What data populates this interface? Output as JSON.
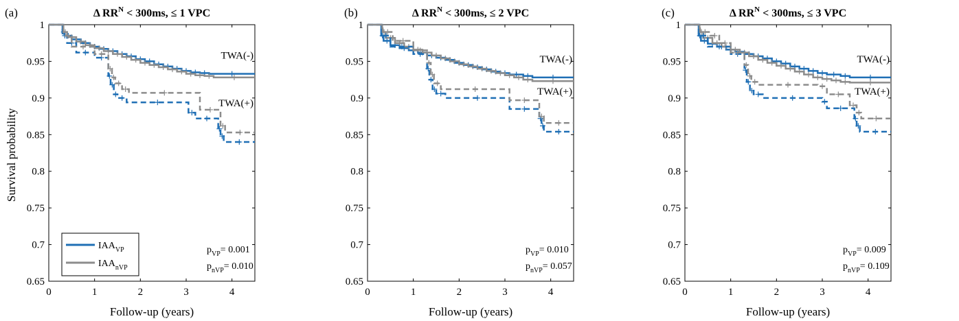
{
  "figure": {
    "ylabel": "Survival probability",
    "xlabel": "Follow-up (years)",
    "y_ticks": [
      "1",
      "0.95",
      "0.9",
      "0.85",
      "0.8",
      "0.75",
      "0.7",
      "0.65"
    ],
    "x_ticks": [
      "0",
      "1",
      "2",
      "3",
      "4"
    ],
    "legend": {
      "items": [
        {
          "base": "IAA",
          "sub": "VP",
          "color": "#1f6fb5"
        },
        {
          "base": "IAA",
          "sub": "nVP",
          "color": "#8c8c8c"
        }
      ]
    }
  },
  "panels": [
    {
      "label": "(a)",
      "title": {
        "pre": "Δ RR",
        "sup": "N",
        "post": " < 300ms, ≤ 1 VPC"
      },
      "twa_neg_label": "TWA(-)",
      "twa_pos_label": "TWA(+)",
      "pvals": [
        {
          "p": "p",
          "sub": "VP",
          "val": "= 0.001"
        },
        {
          "p": "p",
          "sub": "nVP",
          "val": "= 0.010"
        }
      ]
    },
    {
      "label": "(b)",
      "title": {
        "pre": "Δ RR",
        "sup": "N",
        "post": " < 300ms, ≤ 2 VPC"
      },
      "twa_neg_label": "TWA(-)",
      "twa_pos_label": "TWA(+)",
      "pvals": [
        {
          "p": "p",
          "sub": "VP",
          "val": "= 0.010"
        },
        {
          "p": "p",
          "sub": "nVP",
          "val": "= 0.057"
        }
      ]
    },
    {
      "label": "(c)",
      "title": {
        "pre": "Δ RR",
        "sup": "N",
        "post": " < 300ms, ≤ 3 VPC"
      },
      "twa_neg_label": "TWA(-)",
      "twa_pos_label": "TWA(+)",
      "pvals": [
        {
          "p": "p",
          "sub": "VP",
          "val": "= 0.009"
        },
        {
          "p": "p",
          "sub": "nVP",
          "val": "= 0.109"
        }
      ]
    }
  ],
  "chart_data": [
    {
      "type": "line",
      "title": "Δ RR^N < 300ms, ≤ 1 VPC",
      "xlabel": "Follow-up (years)",
      "ylabel": "Survival probability",
      "xlim": [
        0,
        4.5
      ],
      "ylim": [
        0.65,
        1.0
      ],
      "series": [
        {
          "name": "IAA_VP TWA(-)",
          "color": "#1f6fb5",
          "dash": false,
          "x": [
            0,
            0.3,
            0.35,
            0.5,
            0.7,
            0.9,
            1.1,
            1.3,
            1.5,
            1.7,
            1.9,
            2.1,
            2.3,
            2.5,
            2.7,
            2.9,
            3.1,
            3.3,
            3.5,
            4.5
          ],
          "y": [
            1.0,
            0.99,
            0.985,
            0.98,
            0.975,
            0.97,
            0.967,
            0.964,
            0.96,
            0.957,
            0.953,
            0.95,
            0.946,
            0.943,
            0.94,
            0.937,
            0.935,
            0.934,
            0.933,
            0.933
          ]
        },
        {
          "name": "IAA_nVP TWA(-)",
          "color": "#8c8c8c",
          "dash": false,
          "x": [
            0,
            0.32,
            0.4,
            0.6,
            0.8,
            1.0,
            1.2,
            1.4,
            1.6,
            1.8,
            2.0,
            2.2,
            2.4,
            2.6,
            2.8,
            3.0,
            3.2,
            3.4,
            3.6,
            4.5
          ],
          "y": [
            1.0,
            0.99,
            0.983,
            0.977,
            0.972,
            0.968,
            0.964,
            0.96,
            0.956,
            0.952,
            0.948,
            0.945,
            0.942,
            0.939,
            0.936,
            0.933,
            0.931,
            0.93,
            0.928,
            0.928
          ]
        },
        {
          "name": "IAA_VP TWA(+)",
          "color": "#1f6fb5",
          "dash": true,
          "x": [
            0,
            0.3,
            0.4,
            0.6,
            1.0,
            1.3,
            1.35,
            1.42,
            1.5,
            1.7,
            3.05,
            3.2,
            3.7,
            3.75,
            3.82,
            4.5
          ],
          "y": [
            1.0,
            0.985,
            0.975,
            0.962,
            0.955,
            0.93,
            0.918,
            0.905,
            0.9,
            0.894,
            0.88,
            0.872,
            0.858,
            0.848,
            0.84,
            0.84
          ]
        },
        {
          "name": "IAA_nVP TWA(+)",
          "color": "#8c8c8c",
          "dash": true,
          "x": [
            0,
            0.32,
            0.5,
            1.0,
            1.3,
            1.38,
            1.45,
            1.6,
            1.75,
            3.3,
            3.75,
            3.85,
            4.5
          ],
          "y": [
            1.0,
            0.985,
            0.97,
            0.96,
            0.94,
            0.928,
            0.92,
            0.912,
            0.907,
            0.884,
            0.862,
            0.853,
            0.853
          ]
        }
      ]
    },
    {
      "type": "line",
      "title": "Δ RR^N < 300ms, ≤ 2 VPC",
      "xlabel": "Follow-up (years)",
      "ylabel": "",
      "xlim": [
        0,
        4.5
      ],
      "ylim": [
        0.65,
        1.0
      ],
      "series": [
        {
          "name": "IAA_VP TWA(-)",
          "color": "#1f6fb5",
          "dash": false,
          "x": [
            0,
            0.3,
            0.35,
            0.5,
            0.7,
            0.9,
            1.1,
            1.3,
            1.5,
            1.7,
            1.9,
            2.1,
            2.3,
            2.5,
            2.7,
            2.9,
            3.1,
            3.4,
            3.6,
            4.5
          ],
          "y": [
            1.0,
            0.985,
            0.978,
            0.972,
            0.968,
            0.965,
            0.962,
            0.958,
            0.955,
            0.952,
            0.948,
            0.945,
            0.942,
            0.939,
            0.936,
            0.934,
            0.932,
            0.93,
            0.928,
            0.928
          ]
        },
        {
          "name": "IAA_nVP TWA(-)",
          "color": "#8c8c8c",
          "dash": false,
          "x": [
            0,
            0.32,
            0.4,
            0.6,
            0.8,
            1.0,
            1.2,
            1.4,
            1.6,
            1.8,
            2.0,
            2.2,
            2.4,
            2.6,
            2.8,
            3.0,
            3.2,
            3.4,
            3.6,
            4.5
          ],
          "y": [
            1.0,
            0.99,
            0.982,
            0.975,
            0.97,
            0.966,
            0.962,
            0.958,
            0.954,
            0.95,
            0.946,
            0.943,
            0.94,
            0.937,
            0.934,
            0.931,
            0.928,
            0.925,
            0.923,
            0.923
          ]
        },
        {
          "name": "IAA_VP TWA(+)",
          "color": "#1f6fb5",
          "dash": true,
          "x": [
            0,
            0.3,
            0.5,
            1.0,
            1.3,
            1.35,
            1.42,
            1.5,
            1.7,
            3.1,
            3.75,
            3.8,
            3.85,
            4.5
          ],
          "y": [
            1.0,
            0.985,
            0.97,
            0.96,
            0.94,
            0.925,
            0.912,
            0.906,
            0.9,
            0.885,
            0.872,
            0.862,
            0.854,
            0.854
          ]
        },
        {
          "name": "IAA_nVP TWA(+)",
          "color": "#8c8c8c",
          "dash": true,
          "x": [
            0,
            0.33,
            0.55,
            1.0,
            1.3,
            1.38,
            1.45,
            1.6,
            3.1,
            3.75,
            3.85,
            4.5
          ],
          "y": [
            1.0,
            0.99,
            0.978,
            0.965,
            0.948,
            0.932,
            0.92,
            0.912,
            0.897,
            0.875,
            0.866,
            0.866
          ]
        }
      ]
    },
    {
      "type": "line",
      "title": "Δ RR^N < 300ms, ≤ 3 VPC",
      "xlabel": "Follow-up (years)",
      "ylabel": "",
      "xlim": [
        0,
        4.5
      ],
      "ylim": [
        0.65,
        1.0
      ],
      "series": [
        {
          "name": "IAA_VP TWA(-)",
          "color": "#1f6fb5",
          "dash": false,
          "x": [
            0,
            0.3,
            0.35,
            0.5,
            0.7,
            0.9,
            1.1,
            1.3,
            1.5,
            1.7,
            1.9,
            2.1,
            2.3,
            2.5,
            2.7,
            2.9,
            3.1,
            3.4,
            3.6,
            4.5
          ],
          "y": [
            1.0,
            0.985,
            0.978,
            0.974,
            0.97,
            0.966,
            0.963,
            0.96,
            0.957,
            0.954,
            0.95,
            0.947,
            0.943,
            0.94,
            0.937,
            0.934,
            0.932,
            0.93,
            0.928,
            0.928
          ]
        },
        {
          "name": "IAA_nVP TWA(-)",
          "color": "#8c8c8c",
          "dash": false,
          "x": [
            0,
            0.32,
            0.4,
            0.6,
            0.8,
            1.0,
            1.2,
            1.4,
            1.6,
            1.8,
            2.0,
            2.2,
            2.4,
            2.6,
            2.8,
            3.0,
            3.2,
            3.4,
            3.6,
            4.5
          ],
          "y": [
            1.0,
            0.99,
            0.982,
            0.975,
            0.97,
            0.966,
            0.962,
            0.957,
            0.952,
            0.948,
            0.944,
            0.94,
            0.936,
            0.932,
            0.928,
            0.926,
            0.924,
            0.922,
            0.921,
            0.921
          ]
        },
        {
          "name": "IAA_VP TWA(+)",
          "color": "#1f6fb5",
          "dash": true,
          "x": [
            0,
            0.3,
            0.5,
            1.0,
            1.3,
            1.35,
            1.42,
            1.5,
            1.7,
            3.0,
            3.1,
            3.7,
            3.75,
            3.82,
            4.5
          ],
          "y": [
            1.0,
            0.985,
            0.97,
            0.96,
            0.938,
            0.922,
            0.91,
            0.905,
            0.9,
            0.895,
            0.886,
            0.872,
            0.862,
            0.854,
            0.854
          ]
        },
        {
          "name": "IAA_nVP TWA(+)",
          "color": "#8c8c8c",
          "dash": true,
          "x": [
            0,
            0.33,
            0.55,
            0.75,
            1.0,
            1.3,
            1.38,
            1.45,
            1.6,
            2.9,
            3.1,
            3.6,
            3.75,
            3.85,
            4.5
          ],
          "y": [
            1.0,
            0.99,
            0.985,
            0.975,
            0.962,
            0.945,
            0.93,
            0.922,
            0.918,
            0.916,
            0.905,
            0.89,
            0.88,
            0.872,
            0.872
          ]
        }
      ]
    }
  ]
}
